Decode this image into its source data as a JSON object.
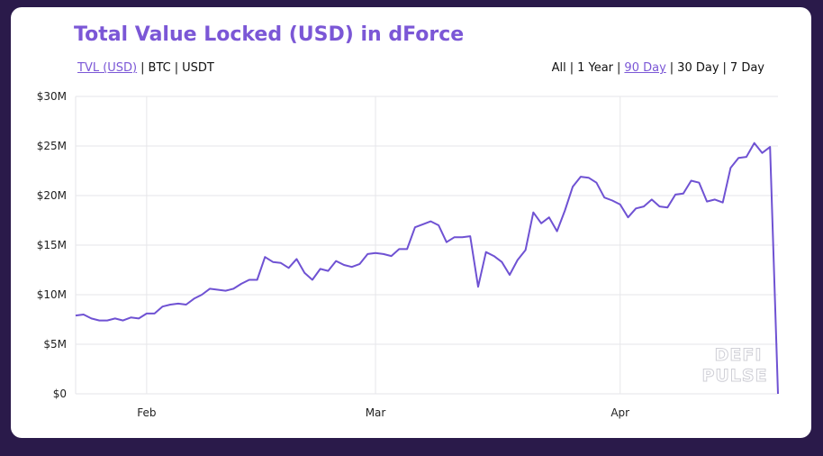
{
  "title": "Total Value Locked (USD) in dForce",
  "unit_toggles": [
    {
      "label": "TVL (USD)",
      "active": true
    },
    {
      "label": "BTC",
      "active": false
    },
    {
      "label": "USDT",
      "active": false
    }
  ],
  "range_toggles": [
    {
      "label": "All",
      "active": false
    },
    {
      "label": "1 Year",
      "active": false
    },
    {
      "label": "90 Day",
      "active": true
    },
    {
      "label": "30 Day",
      "active": false
    },
    {
      "label": "7 Day",
      "active": false
    }
  ],
  "separator": "|",
  "watermark": {
    "line1": "DEFI",
    "line2": "PULSE"
  },
  "colors": {
    "accent": "#7b57d6",
    "line": "#6f52d3",
    "background": "#2a1a4a",
    "grid": "#e6e6ea"
  },
  "chart_data": {
    "type": "line",
    "title": "Total Value Locked (USD) in dForce",
    "ylim": [
      0,
      30
    ],
    "y_unit": "M USD",
    "yticks": [
      {
        "value": 0,
        "label": "$0"
      },
      {
        "value": 5,
        "label": "$5M"
      },
      {
        "value": 10,
        "label": "$10M"
      },
      {
        "value": 15,
        "label": "$15M"
      },
      {
        "value": 20,
        "label": "$20M"
      },
      {
        "value": 25,
        "label": "$25M"
      },
      {
        "value": 30,
        "label": "$30M"
      }
    ],
    "xticks": [
      {
        "index": 9,
        "label": "Feb"
      },
      {
        "index": 38,
        "label": "Mar"
      },
      {
        "index": 69,
        "label": "Apr"
      }
    ],
    "grid": true,
    "series": [
      {
        "values": [
          7.9,
          8.0,
          7.6,
          7.4,
          7.4,
          7.6,
          7.4,
          7.7,
          7.6,
          8.1,
          8.1,
          8.8,
          9.0,
          9.1,
          9.0,
          9.6,
          10.0,
          10.6,
          10.5,
          10.4,
          10.6,
          11.1,
          11.5,
          11.5,
          13.8,
          13.3,
          13.2,
          12.7,
          13.6,
          12.2,
          11.5,
          12.6,
          12.4,
          13.4,
          13.0,
          12.8,
          13.1,
          14.1,
          14.2,
          14.1,
          13.9,
          14.6,
          14.6,
          16.8,
          17.1,
          17.4,
          17.0,
          15.3,
          15.8,
          15.8,
          15.9,
          10.8,
          14.3,
          13.9,
          13.3,
          12.0,
          13.5,
          14.5,
          18.3,
          17.2,
          17.8,
          16.4,
          18.5,
          20.9,
          21.9,
          21.8,
          21.3,
          19.8,
          19.5,
          19.1,
          17.8,
          18.7,
          18.9,
          19.6,
          18.9,
          18.8,
          20.1,
          20.2,
          21.5,
          21.3,
          19.4,
          19.6,
          19.3,
          22.8,
          23.8,
          23.9,
          25.3,
          24.3,
          24.9,
          0.0
        ]
      }
    ]
  }
}
